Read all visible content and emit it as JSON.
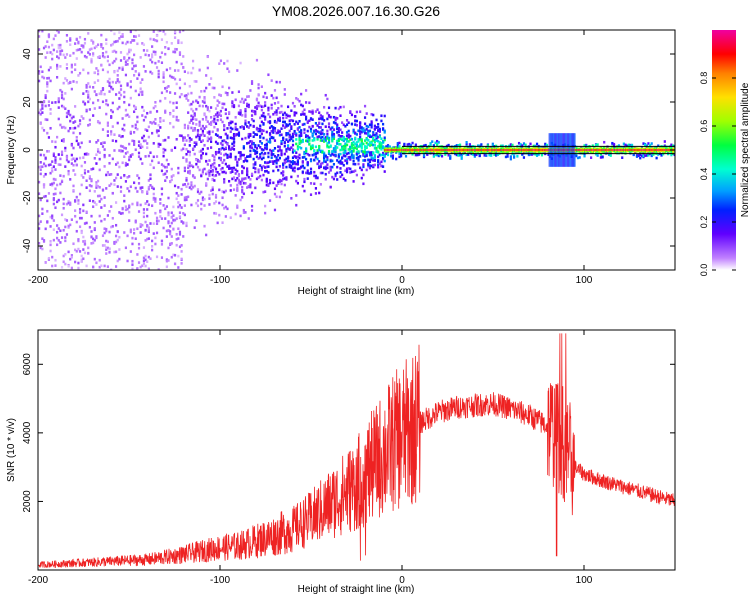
{
  "title": "YM08.2026.007.16.30.G26",
  "colors": {
    "snr_line": "#ee2222",
    "axis": "#000000",
    "colorbar": [
      "#f000a0",
      "#ff0000",
      "#ff8000",
      "#ffe000",
      "#a0ff00",
      "#00ff40",
      "#00ffd0",
      "#00a0ff",
      "#0020ff",
      "#6000ff",
      "#c080ff",
      "#ffffff"
    ]
  },
  "chart_data": [
    {
      "type": "heatmap",
      "title": "YM08.2026.007.16.30.G26",
      "xlabel": "Height of straight line (km)",
      "ylabel": "Frequency (Hz)",
      "xlim": [
        -200,
        150
      ],
      "ylim": [
        -50,
        50
      ],
      "xticks": [
        -200,
        -100,
        0,
        100
      ],
      "yticks": [
        -40,
        -20,
        0,
        20,
        40
      ],
      "colorbar": {
        "label": "Normalized spectral amplitude",
        "range": [
          0,
          1
        ],
        "ticks": [
          0.0,
          0.2,
          0.4,
          0.6,
          0.8
        ]
      },
      "features": [
        {
          "x_range": [
            -200,
            -120
          ],
          "description_value": "scattered power across all frequencies"
        },
        {
          "x_range": [
            -120,
            -10
          ],
          "center_freq": 2,
          "spread_hz": 8
        },
        {
          "x_range": [
            -10,
            150
          ],
          "center_freq": 0,
          "spread_hz": 2,
          "peak_amplitude": 1.0
        }
      ]
    },
    {
      "type": "line",
      "xlabel": "Height of straight line (km)",
      "ylabel": "SNR (10 * v/v)",
      "xlim": [
        -200,
        150
      ],
      "ylim": [
        0,
        7000
      ],
      "xticks": [
        -200,
        -100,
        0,
        100
      ],
      "yticks": [
        2000,
        4000,
        6000
      ],
      "series": [
        {
          "name": "SNR",
          "x": [
            -200,
            -180,
            -160,
            -140,
            -120,
            -100,
            -90,
            -80,
            -70,
            -60,
            -50,
            -40,
            -30,
            -25,
            -20,
            -15,
            -10,
            -5,
            0,
            10,
            20,
            30,
            40,
            50,
            60,
            70,
            80,
            85,
            88,
            90,
            92,
            95,
            100,
            110,
            120,
            130,
            140,
            150
          ],
          "values": [
            150,
            200,
            250,
            300,
            450,
            650,
            700,
            850,
            1000,
            1200,
            1500,
            1900,
            2300,
            2500,
            2800,
            3100,
            3400,
            3700,
            3900,
            4300,
            4600,
            4750,
            4800,
            4850,
            4700,
            4500,
            4200,
            4000,
            3800,
            3600,
            3300,
            3000,
            2800,
            2600,
            2450,
            2300,
            2150,
            2000
          ]
        }
      ]
    }
  ]
}
